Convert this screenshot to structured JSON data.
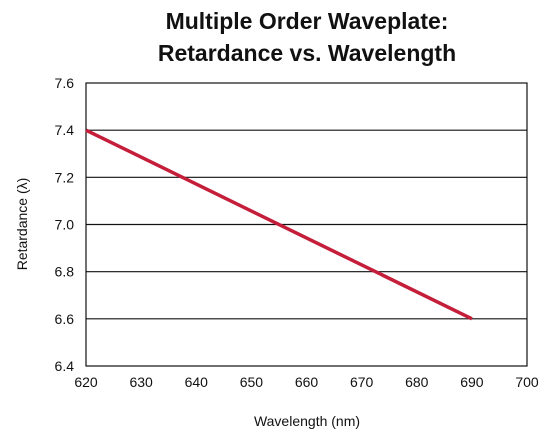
{
  "chart_data": {
    "type": "line",
    "title_lines": [
      "Multiple Order Waveplate:",
      "Retardance vs. Wavelength"
    ],
    "xlabel": "Wavelength (nm)",
    "ylabel": "Retardance (λ)",
    "xlim": [
      620,
      700
    ],
    "ylim": [
      6.4,
      7.6
    ],
    "x_ticks": [
      620,
      630,
      640,
      650,
      660,
      670,
      680,
      690,
      700
    ],
    "y_ticks": [
      6.4,
      6.6,
      6.8,
      7.0,
      7.2,
      7.4,
      7.6
    ],
    "x_tick_labels": [
      "620",
      "630",
      "640",
      "650",
      "660",
      "670",
      "680",
      "690",
      "700"
    ],
    "y_tick_labels": [
      "6.4",
      "6.6",
      "6.8",
      "7.0",
      "7.2",
      "7.4",
      "7.6"
    ],
    "grid": "horizontal",
    "series": [
      {
        "x": [
          620,
          690
        ],
        "y": [
          7.4,
          6.6
        ],
        "color": "#c41e3a"
      }
    ]
  }
}
